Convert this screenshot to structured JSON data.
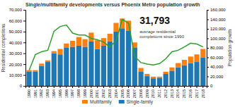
{
  "chart_data": {
    "type": "bar",
    "title": "Single/multifamily developments versus Phoenix Metro population growth",
    "categories": [
      1990,
      1991,
      1992,
      1993,
      1994,
      1995,
      1996,
      1997,
      1998,
      1999,
      2000,
      2001,
      2002,
      2003,
      2004,
      2005,
      2006,
      2007,
      2008,
      2009,
      2010,
      2011,
      2012,
      2013,
      2014,
      2015,
      2016,
      2017,
      2018
    ],
    "stacked": true,
    "grid": false,
    "series": [
      {
        "name": "Single-family",
        "type": "bar",
        "values": [
          13000,
          13000,
          18500,
          22000,
          30000,
          29000,
          35000,
          36000,
          37000,
          36000,
          41000,
          34000,
          37000,
          41000,
          50000,
          53000,
          51000,
          35000,
          13000,
          9000,
          7000,
          7500,
          11000,
          14000,
          17000,
          19000,
          21000,
          22000,
          26000
        ]
      },
      {
        "name": "Multifamily",
        "type": "bar",
        "values": [
          1500,
          1500,
          2000,
          1500,
          2000,
          5000,
          4000,
          5500,
          8000,
          7000,
          8000,
          8000,
          7000,
          7000,
          8000,
          9000,
          9000,
          5000,
          3500,
          2000,
          1500,
          1000,
          2000,
          3000,
          4000,
          5000,
          6000,
          7000,
          8000
        ]
      },
      {
        "type": "line",
        "axis": "y2",
        "values": [
          33000,
          66000,
          72000,
          75000,
          115000,
          125000,
          128000,
          111000,
          107000,
          107000,
          100000,
          97000,
          92000,
          82000,
          95000,
          140000,
          132000,
          62000,
          49000,
          46000,
          44000,
          47000,
          57000,
          72000,
          75000,
          82000,
          90000,
          88000,
          82000
        ]
      }
    ],
    "ylabel": "Residential completions",
    "y2label": "Population growth",
    "ylim": [
      0,
      70000
    ],
    "yticks": [
      0,
      {
        "value": 10000,
        "label": "10,000"
      },
      {
        "value": 20000,
        "label": "20,000"
      },
      {
        "value": 30000,
        "label": "30,000"
      },
      {
        "value": 40000,
        "label": "40,000"
      },
      {
        "value": 50000,
        "label": "50,000"
      },
      {
        "value": 60000,
        "label": "60,000"
      },
      {
        "value": 70000,
        "label": "70,000"
      }
    ],
    "y2lim": [
      0,
      160000
    ],
    "y2ticks": [
      0,
      {
        "value": 20000,
        "label": "20,000"
      },
      {
        "value": 40000,
        "label": "40,000"
      },
      {
        "value": 60000,
        "label": "60,000"
      },
      {
        "value": 80000,
        "label": "80,000"
      },
      {
        "value": 100000,
        "label": "100,000"
      },
      {
        "value": 120000,
        "label": "120,000"
      },
      {
        "value": 140000,
        "label": "140,000"
      },
      {
        "value": 160000,
        "label": "160,000"
      }
    ],
    "annotations": [
      "31,793",
      "average residential\ncompletions since 1990"
    ]
  }
}
